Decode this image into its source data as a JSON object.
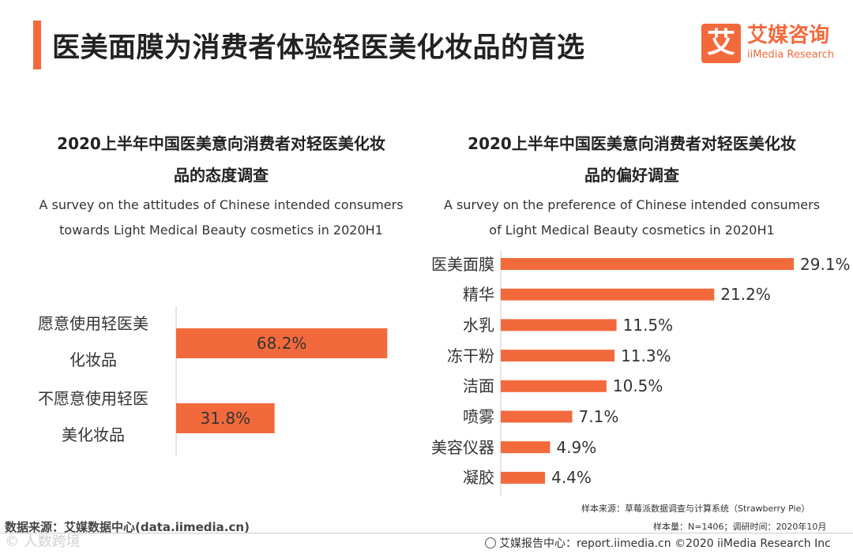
{
  "page_title": "医美面膜为消费者体验轻医美化妆品的首选",
  "logo": {
    "cn": "艾媒咨询",
    "en": "iiMedia Research",
    "mark": "艾"
  },
  "colors": {
    "accent": "#f26a3c",
    "bar": "#f26a3c",
    "axis": "#cccccc"
  },
  "chart_data": [
    {
      "type": "bar",
      "orientation": "horizontal",
      "title_line1": "2020上半年中国医美意向消费者对轻医美化妆",
      "title_line2": "品的态度调查",
      "subtitle_line1": "A survey on the attitudes of Chinese intended consumers",
      "subtitle_line2": "towards Light Medical Beauty cosmetics in 2020H1",
      "categories_lines": [
        [
          "愿意使用轻医美",
          "化妆品"
        ],
        [
          "不愿意使用轻医",
          "美化妆品"
        ]
      ],
      "values": [
        68.2,
        31.8
      ],
      "value_labels": [
        "68.2%",
        "31.8%"
      ],
      "unit": "%"
    },
    {
      "type": "bar",
      "orientation": "horizontal",
      "title_line1": "2020上半年中国医美意向消费者对轻医美化妆",
      "title_line2": "品的偏好调查",
      "subtitle_line1": "A survey on the preference of Chinese intended consumers",
      "subtitle_line2": "of Light Medical Beauty cosmetics in 2020H1",
      "categories": [
        "医美面膜",
        "精华",
        "水乳",
        "冻干粉",
        "洁面",
        "喷雾",
        "美容仪器",
        "凝胶"
      ],
      "values": [
        29.1,
        21.2,
        11.5,
        11.3,
        10.5,
        7.1,
        4.9,
        4.4
      ],
      "value_labels": [
        "29.1%",
        "21.2%",
        "11.5%",
        "11.3%",
        "10.5%",
        "7.1%",
        "4.9%",
        "4.4%"
      ],
      "unit": "%"
    }
  ],
  "notes": {
    "sample_source": "样本来源：草莓派数据调查与计算系统（Strawberry Pie）",
    "sample_size": "样本量：N=1406；调研时间：2020年10月"
  },
  "source": "数据来源：艾媒数据中心(data.iimedia.cn)",
  "watermark": "© 人数跨境",
  "footer": "艾媒报告中心：report.iimedia.cn  ©2020  iiMedia Research  Inc"
}
